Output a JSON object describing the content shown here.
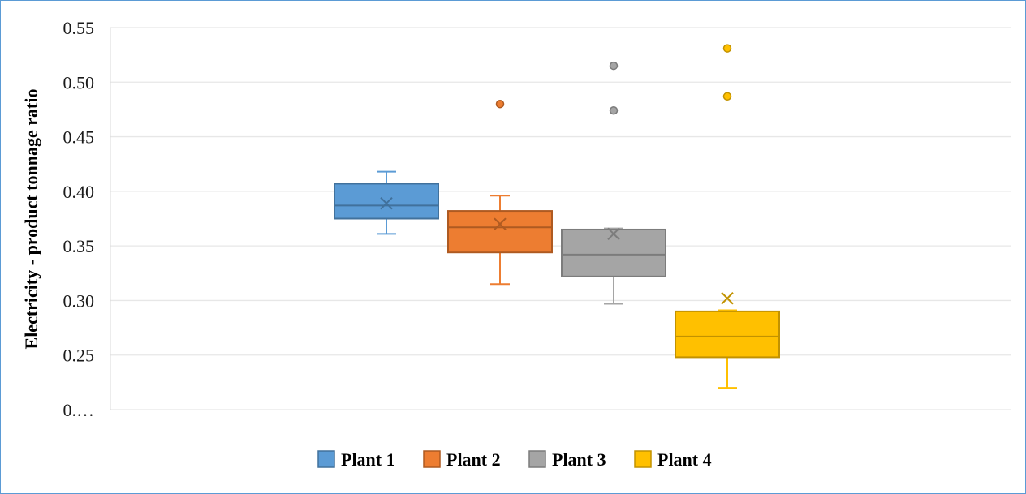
{
  "chart_data": {
    "type": "boxplot",
    "ylabel": "Electricity - product tonnage ratio",
    "xlabel": "",
    "title": "",
    "ylim": [
      0.2,
      0.55
    ],
    "yticks": [
      {
        "value": 0.55,
        "label": "0.55"
      },
      {
        "value": 0.5,
        "label": "0.50"
      },
      {
        "value": 0.45,
        "label": "0.45"
      },
      {
        "value": 0.4,
        "label": "0.40"
      },
      {
        "value": 0.35,
        "label": "0.35"
      },
      {
        "value": 0.3,
        "label": "0.30"
      },
      {
        "value": 0.25,
        "label": "0.25"
      },
      {
        "value": 0.2,
        "label": "0.…"
      }
    ],
    "grid": true,
    "legend_position": "bottom",
    "series": [
      {
        "name": "Plant 1",
        "color": "#5b9bd5",
        "stroke": "#41719c",
        "min": 0.361,
        "q1": 0.375,
        "median": 0.387,
        "q3": 0.407,
        "max": 0.418,
        "mean": 0.389,
        "outliers": []
      },
      {
        "name": "Plant 2",
        "color": "#ed7d31",
        "stroke": "#ae5a21",
        "min": 0.315,
        "q1": 0.344,
        "median": 0.367,
        "q3": 0.382,
        "max": 0.396,
        "mean": 0.37,
        "outliers": [
          0.48
        ]
      },
      {
        "name": "Plant 3",
        "color": "#a5a5a5",
        "stroke": "#7c7c7c",
        "min": 0.297,
        "q1": 0.322,
        "median": 0.342,
        "q3": 0.365,
        "max": 0.366,
        "mean": 0.361,
        "outliers": [
          0.474,
          0.515
        ]
      },
      {
        "name": "Plant 4",
        "color": "#ffc000",
        "stroke": "#c29200",
        "min": 0.22,
        "q1": 0.248,
        "median": 0.267,
        "q3": 0.29,
        "max": 0.291,
        "mean": 0.302,
        "outliers": [
          0.487,
          0.531
        ]
      }
    ]
  }
}
